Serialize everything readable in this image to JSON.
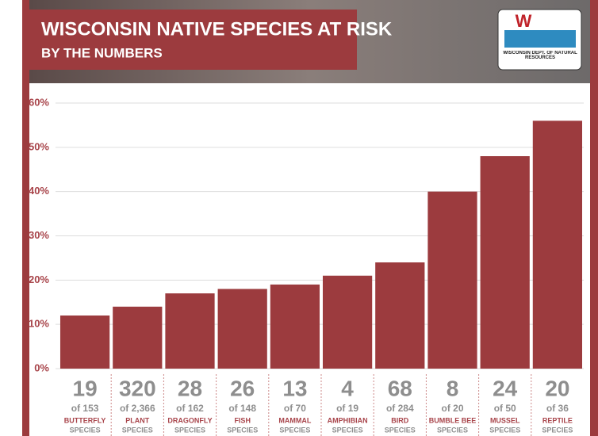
{
  "chart_data": {
    "type": "bar",
    "title": "WISCONSIN NATIVE SPECIES AT RISK",
    "subtitle": "BY THE NUMBERS",
    "logo": {
      "letter": "W",
      "text": "WISCONSIN DEPT. OF NATURAL RESOURCES"
    },
    "categories": [
      "BUTTERFLY",
      "PLANT",
      "DRAGONFLY",
      "FISH",
      "MAMMAL",
      "AMPHIBIAN",
      "BIRD",
      "BUMBLE BEE",
      "MUSSEL",
      "REPTILE"
    ],
    "values": [
      12,
      14,
      17,
      18,
      19,
      21,
      24,
      40,
      48,
      56
    ],
    "details": [
      {
        "count": 19,
        "total": "of 153",
        "kind": "SPECIES"
      },
      {
        "count": 320,
        "total": "of 2,366",
        "kind": "SPECIES"
      },
      {
        "count": 28,
        "total": "of 162",
        "kind": "SPECIES"
      },
      {
        "count": 26,
        "total": "of 148",
        "kind": "SPECIES"
      },
      {
        "count": 13,
        "total": "of 70",
        "kind": "SPECIES"
      },
      {
        "count": 4,
        "total": "of 19",
        "kind": "SPECIES"
      },
      {
        "count": 68,
        "total": "of 284",
        "kind": "SPECIES"
      },
      {
        "count": 8,
        "total": "of 20",
        "kind": "SPECIES"
      },
      {
        "count": 24,
        "total": "of 50",
        "kind": "SPECIES"
      },
      {
        "count": 20,
        "total": "of 36",
        "kind": "SPECIES"
      }
    ],
    "color": "#9c3b3e",
    "ylim": [
      0,
      60
    ],
    "yticks": [
      {
        "value": 0,
        "label": "0%"
      },
      {
        "value": 10,
        "label": "10%"
      },
      {
        "value": 20,
        "label": "20%"
      },
      {
        "value": 30,
        "label": "30%"
      },
      {
        "value": 40,
        "label": "40%"
      },
      {
        "value": 50,
        "label": "50%"
      },
      {
        "value": 60,
        "label": "60%"
      }
    ],
    "grid": true
  }
}
